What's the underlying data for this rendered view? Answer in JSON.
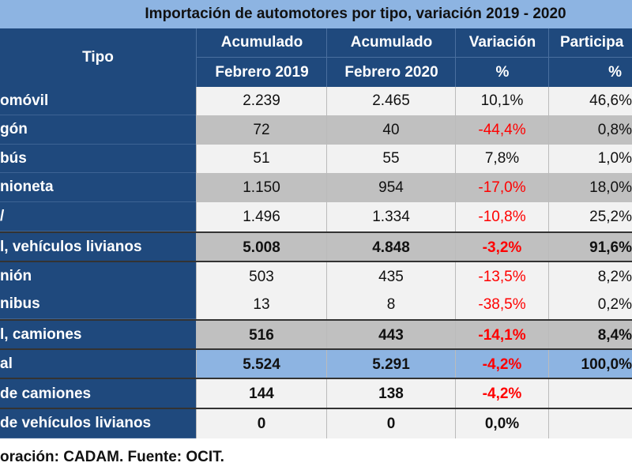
{
  "title": "Importación de automotores por tipo, variación 2019 - 2020",
  "header": {
    "tipo": "Tipo",
    "col1": [
      "Acumulado",
      "Febrero 2019"
    ],
    "col2": [
      "Acumulado",
      "Febrero 2020"
    ],
    "col3": [
      "Variación",
      "%"
    ],
    "col4": [
      "Participa",
      "%"
    ]
  },
  "rows": [
    {
      "label": "omóvil",
      "v2019": "2.239",
      "v2020": "2.465",
      "var": "10,1%",
      "part": "46,6%",
      "style": "light",
      "bold": false,
      "neg": false
    },
    {
      "label": "gón",
      "v2019": "72",
      "v2020": "40",
      "var": "-44,4%",
      "part": "0,8%",
      "style": "gray",
      "bold": false,
      "neg": true
    },
    {
      "label": "bús",
      "v2019": "51",
      "v2020": "55",
      "var": "7,8%",
      "part": "1,0%",
      "style": "light",
      "bold": false,
      "neg": false
    },
    {
      "label": "nioneta",
      "v2019": "1.150",
      "v2020": "954",
      "var": "-17,0%",
      "part": "18,0%",
      "style": "gray",
      "bold": false,
      "neg": true
    },
    {
      "label": "/",
      "v2019": "1.496",
      "v2020": "1.334",
      "var": "-10,8%",
      "part": "25,2%",
      "style": "light",
      "bold": false,
      "neg": true
    },
    {
      "label": "l, vehículos livianos",
      "v2019": "5.008",
      "v2020": "4.848",
      "var": "-3,2%",
      "part": "91,6%",
      "style": "gray",
      "bold": true,
      "neg": true
    },
    {
      "label": "nión",
      "v2019": "503",
      "v2020": "435",
      "var": "-13,5%",
      "part": "8,2%",
      "style": "light",
      "bold": false,
      "neg": true
    },
    {
      "label": "nibus",
      "v2019": "13",
      "v2020": "8",
      "var": "-38,5%",
      "part": "0,2%",
      "style": "light",
      "bold": false,
      "neg": true
    },
    {
      "label": "l, camiones",
      "v2019": "516",
      "v2020": "443",
      "var": "-14,1%",
      "part": "8,4%",
      "style": "gray",
      "bold": true,
      "neg": true
    },
    {
      "label": "al",
      "v2019": "5.524",
      "v2020": "5.291",
      "var": "-4,2%",
      "part": "100,0%",
      "style": "blue",
      "bold": true,
      "neg": true
    },
    {
      "label": "de camiones",
      "v2019": "144",
      "v2020": "138",
      "var": "-4,2%",
      "part": "",
      "style": "light",
      "bold": true,
      "neg": true
    },
    {
      "label": "de vehículos livianos",
      "v2019": "0",
      "v2020": "0",
      "var": "0,0%",
      "part": "",
      "style": "light",
      "bold": true,
      "neg": false
    }
  ],
  "footer": "oración: CADAM. Fuente: OCIT.",
  "colors": {
    "navy": "#1f497d",
    "light_blue": "#8db4e2",
    "gray": "#c0c0c0",
    "light": "#f2f2f2",
    "negative": "#ff0000"
  }
}
